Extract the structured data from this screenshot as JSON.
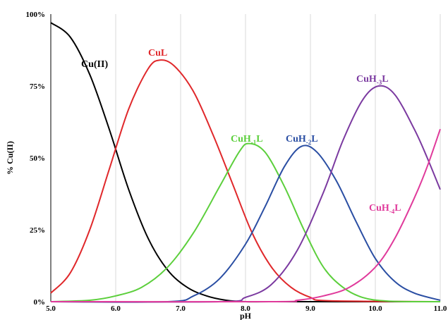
{
  "chart_data": {
    "type": "line",
    "xlabel": "pH",
    "ylabel": "% Cu(II)",
    "xlim": [
      5.0,
      11.0
    ],
    "ylim": [
      0,
      100
    ],
    "x_ticks": [
      "5.0",
      "6.0",
      "7.0",
      "8.0",
      "9.0",
      "10.0",
      "11.0"
    ],
    "y_ticks": [
      "0%",
      "25%",
      "50%",
      "75%",
      "100%"
    ],
    "grid": "vertical",
    "series": [
      {
        "name": "Cu(II)",
        "label_main": "Cu(II)",
        "label_sub": "",
        "label_tail": "",
        "color": "#000000",
        "x": [
          5.0,
          5.3,
          5.6,
          5.9,
          6.2,
          6.5,
          6.8,
          7.1,
          7.4,
          7.7,
          8.0,
          8.5,
          11.0
        ],
        "values": [
          97,
          92,
          79,
          60,
          39,
          22,
          11,
          5,
          2,
          0.5,
          0,
          0,
          0
        ]
      },
      {
        "name": "CuL",
        "label_main": "CuL",
        "label_sub": "",
        "label_tail": "",
        "color": "#e0282b",
        "x": [
          5.0,
          5.3,
          5.6,
          5.9,
          6.2,
          6.5,
          6.68,
          6.9,
          7.2,
          7.5,
          7.8,
          8.1,
          8.4,
          8.7,
          9.0,
          9.3,
          11.0
        ],
        "values": [
          3,
          10,
          25,
          46,
          67,
          81,
          84,
          82,
          73,
          58,
          41,
          24,
          12,
          5,
          1.5,
          0.3,
          0
        ]
      },
      {
        "name": "CuH-1L",
        "label_main": "CuH",
        "label_sub": "-1",
        "label_tail": "L",
        "color": "#5ccf3c",
        "x": [
          5.0,
          5.6,
          6.0,
          6.4,
          6.8,
          7.2,
          7.6,
          7.9,
          8.05,
          8.3,
          8.6,
          8.9,
          9.2,
          9.5,
          9.8,
          10.2,
          11.0
        ],
        "values": [
          0,
          0.5,
          2,
          5,
          12,
          24,
          40,
          52,
          55,
          52,
          40,
          25,
          12,
          5,
          1.5,
          0.2,
          0
        ]
      },
      {
        "name": "CuH-2L",
        "label_main": "CuH",
        "label_sub": "-2",
        "label_tail": "L",
        "color": "#2a4ea3",
        "x": [
          5.0,
          6.8,
          7.2,
          7.6,
          8.0,
          8.3,
          8.6,
          8.86,
          9.1,
          9.4,
          9.7,
          10.0,
          10.3,
          10.6,
          11.0
        ],
        "values": [
          0,
          0,
          2,
          8,
          20,
          33,
          47,
          54,
          52,
          42,
          28,
          15,
          7,
          3,
          0.5
        ]
      },
      {
        "name": "CuH-3L",
        "label_main": "CuH",
        "label_sub": "-3",
        "label_tail": "L",
        "color": "#7b3aa0",
        "x": [
          5.0,
          7.6,
          8.0,
          8.4,
          8.8,
          9.2,
          9.5,
          9.8,
          10.05,
          10.3,
          10.6,
          10.8,
          11.0
        ],
        "values": [
          0,
          0,
          1.5,
          6,
          18,
          38,
          56,
          70,
          75,
          72,
          60,
          50,
          39
        ]
      },
      {
        "name": "CuH-4L",
        "label_main": "CuH",
        "label_sub": "-4",
        "label_tail": "L",
        "color": "#e03a9b",
        "x": [
          5.0,
          8.4,
          8.8,
          9.2,
          9.6,
          10.0,
          10.3,
          10.6,
          10.8,
          11.0
        ],
        "values": [
          0,
          0,
          0.5,
          2,
          5,
          12,
          22,
          36,
          47,
          60
        ]
      }
    ]
  }
}
